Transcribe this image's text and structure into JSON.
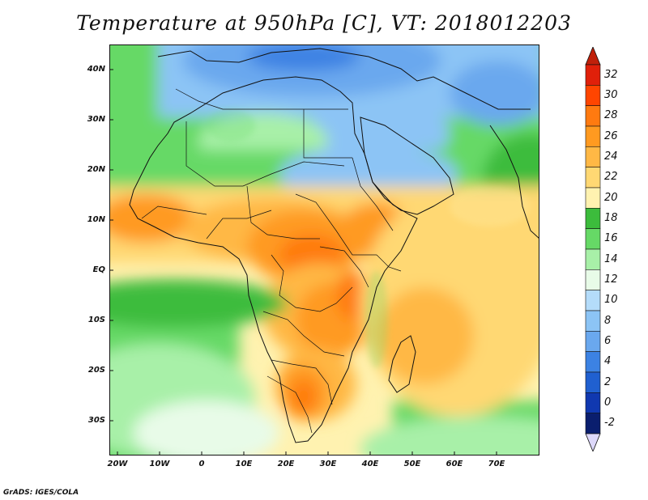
{
  "title": "Temperature at 950hPa [C], VT: 2018012203",
  "lat_labels": [
    "40N",
    "30N",
    "20N",
    "10N",
    "EQ",
    "10S",
    "20S",
    "30S"
  ],
  "lon_labels": [
    "20W",
    "10W",
    "0",
    "10E",
    "20E",
    "30E",
    "40E",
    "50E",
    "60E",
    "70E"
  ],
  "colorbar": {
    "labels": [
      "32",
      "30",
      "28",
      "26",
      "24",
      "22",
      "20",
      "18",
      "16",
      "14",
      "12",
      "10",
      "8",
      "6",
      "4",
      "2",
      "0",
      "-2"
    ],
    "colors": [
      "#e0200a",
      "#ff4500",
      "#ff7a10",
      "#ff9a20",
      "#ffb845",
      "#ffd873",
      "#fff2b0",
      "#3cbc3c",
      "#66d966",
      "#a8f0a8",
      "#e8fbe8",
      "#b4dcfa",
      "#8cc4f5",
      "#6aa8ee",
      "#3c82e3",
      "#2060d0",
      "#1038b0",
      "#0a1e6e"
    ],
    "over_color": "#c0200a",
    "under_color": "#ddd8fa"
  },
  "credit": "GrADS: IGES/COLA"
}
